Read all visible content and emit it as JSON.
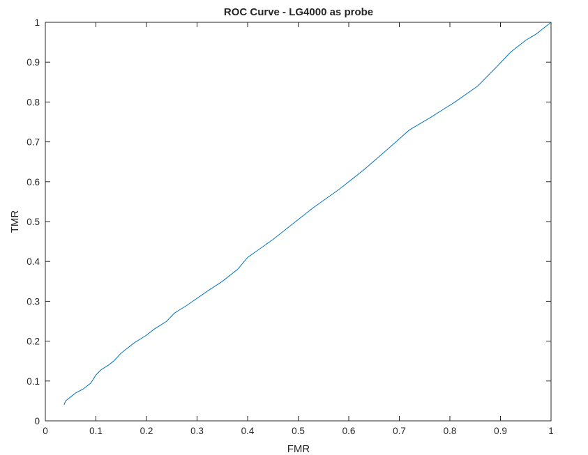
{
  "chart_data": {
    "type": "line",
    "title": "ROC Curve - LG4000 as probe",
    "xlabel": "FMR",
    "ylabel": "TMR",
    "xlim": [
      0,
      1
    ],
    "ylim": [
      0,
      1
    ],
    "xticks": [
      "0",
      "0.1",
      "0.2",
      "0.3",
      "0.4",
      "0.5",
      "0.6",
      "0.7",
      "0.8",
      "0.9",
      "1"
    ],
    "yticks": [
      "0",
      "0.1",
      "0.2",
      "0.3",
      "0.4",
      "0.5",
      "0.6",
      "0.7",
      "0.8",
      "0.9",
      "1"
    ],
    "grid": false,
    "legend": "none",
    "line_color": "#0072BD",
    "series": [
      {
        "x": [
          0.037,
          0.04,
          0.05,
          0.06,
          0.075,
          0.09,
          0.095,
          0.1,
          0.11,
          0.125,
          0.135,
          0.15,
          0.16,
          0.175,
          0.2,
          0.215,
          0.24,
          0.255,
          0.28,
          0.32,
          0.35,
          0.38,
          0.4,
          0.45,
          0.5,
          0.53,
          0.58,
          0.63,
          0.68,
          0.72,
          0.76,
          0.81,
          0.855,
          0.89,
          0.92,
          0.95,
          0.97,
          0.99,
          1.0
        ],
        "y": [
          0.04,
          0.05,
          0.06,
          0.07,
          0.08,
          0.095,
          0.105,
          0.115,
          0.128,
          0.14,
          0.15,
          0.17,
          0.18,
          0.195,
          0.215,
          0.23,
          0.25,
          0.27,
          0.29,
          0.325,
          0.35,
          0.38,
          0.41,
          0.455,
          0.505,
          0.535,
          0.58,
          0.63,
          0.685,
          0.73,
          0.76,
          0.8,
          0.84,
          0.885,
          0.925,
          0.955,
          0.97,
          0.99,
          1.0
        ]
      }
    ]
  }
}
